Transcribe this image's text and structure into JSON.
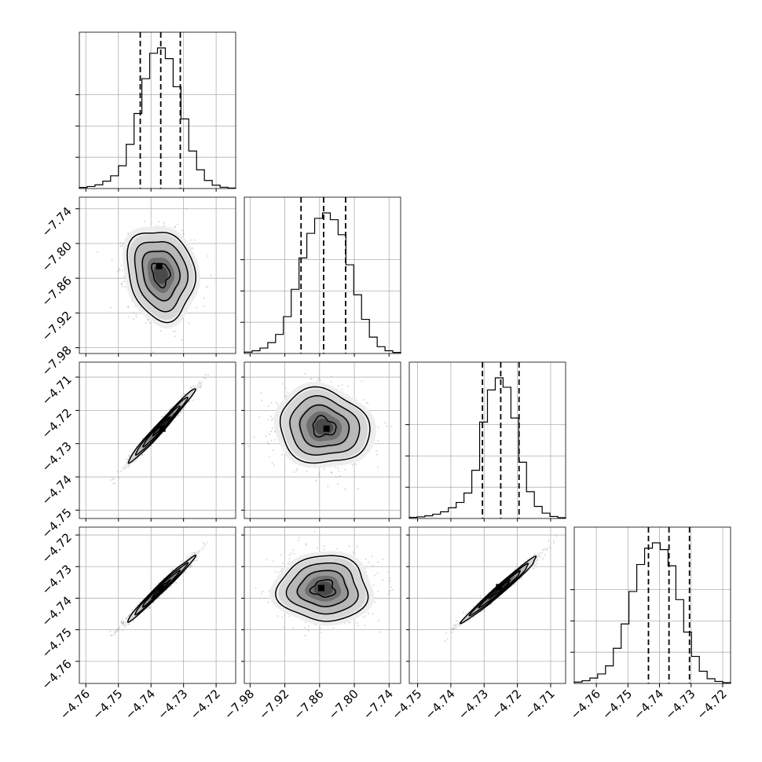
{
  "chart_data": {
    "type": "corner",
    "title": "",
    "colors": {
      "ink": "#000000",
      "grid": "#b0b0b0",
      "points": "#7a7a7a"
    },
    "grid": true,
    "parameters": [
      {
        "range": [
          -4.762,
          -4.714
        ],
        "ticks": [
          -4.76,
          -4.75,
          -4.74,
          -4.73,
          -4.72
        ],
        "tick_labels": [
          "−4.76",
          "−4.75",
          "−4.74",
          "−4.73",
          "−4.72"
        ],
        "quantiles": [
          -4.7433,
          -4.737,
          -4.731
        ],
        "histogram": {
          "edges": [
            -4.762,
            -4.7596,
            -4.7572,
            -4.7548,
            -4.7524,
            -4.75,
            -4.7476,
            -4.7452,
            -4.7428,
            -4.7404,
            -4.738,
            -4.7356,
            -4.7332,
            -4.7308,
            -4.7284,
            -4.726,
            -4.7236,
            -4.7212,
            -4.7188,
            -4.7164,
            -4.714
          ],
          "counts": [
            8,
            15,
            28,
            55,
            95,
            170,
            330,
            560,
            820,
            1010,
            1050,
            970,
            760,
            520,
            280,
            140,
            60,
            25,
            10,
            4
          ]
        }
      },
      {
        "range": [
          -7.99,
          -7.72
        ],
        "ticks": [
          -7.98,
          -7.92,
          -7.86,
          -7.8,
          -7.74
        ],
        "tick_labels": [
          "−7.98",
          "−7.92",
          "−7.86",
          "−7.80",
          "−7.74"
        ],
        "quantiles": [
          -7.892,
          -7.853,
          -7.815
        ],
        "histogram": {
          "edges": [
            -7.99,
            -7.9765,
            -7.963,
            -7.9495,
            -7.936,
            -7.9225,
            -7.909,
            -7.8955,
            -7.882,
            -7.8685,
            -7.855,
            -7.8415,
            -7.828,
            -7.8145,
            -7.801,
            -7.7875,
            -7.774,
            -7.7605,
            -7.747,
            -7.7335,
            -7.72
          ],
          "counts": [
            10,
            20,
            40,
            80,
            140,
            270,
            470,
            700,
            880,
            990,
            1030,
            980,
            870,
            650,
            430,
            250,
            120,
            50,
            20,
            8
          ]
        }
      },
      {
        "range": [
          -4.7525,
          -4.7055
        ],
        "ticks": [
          -4.75,
          -4.74,
          -4.73,
          -4.72,
          -4.71
        ],
        "tick_labels": [
          "−4.75",
          "−4.74",
          "−4.73",
          "−4.72",
          "−4.71"
        ],
        "quantiles": [
          -4.7305,
          -4.725,
          -4.7195
        ],
        "histogram": {
          "edges": [
            -4.7525,
            -4.75015,
            -4.7478,
            -4.74545,
            -4.7431,
            -4.74075,
            -4.7384,
            -4.73605,
            -4.7337,
            -4.73135,
            -4.729,
            -4.72665,
            -4.7243,
            -4.72195,
            -4.7196,
            -4.71725,
            -4.7149,
            -4.71255,
            -4.7102,
            -4.70785,
            -4.7055
          ],
          "counts": [
            8,
            12,
            20,
            32,
            50,
            80,
            120,
            190,
            360,
            720,
            960,
            1050,
            980,
            750,
            420,
            200,
            90,
            40,
            15,
            6
          ]
        }
      },
      {
        "range": [
          -4.767,
          -4.7175
        ],
        "ticks": [
          -4.76,
          -4.75,
          -4.74,
          -4.73,
          -4.72
        ],
        "tick_labels": [
          "−4.76",
          "−4.75",
          "−4.74",
          "−4.73",
          "−4.72"
        ],
        "quantiles": [
          -4.7435,
          -4.737,
          -4.7305
        ],
        "histogram": {
          "edges": [
            -4.767,
            -4.76452,
            -4.76205,
            -4.75958,
            -4.7571,
            -4.75463,
            -4.75215,
            -4.74968,
            -4.7472,
            -4.74472,
            -4.74225,
            -4.73977,
            -4.7373,
            -4.73482,
            -4.73235,
            -4.72988,
            -4.7274,
            -4.72492,
            -4.72245,
            -4.71997,
            -4.7175
          ],
          "counts": [
            10,
            20,
            40,
            70,
            130,
            260,
            440,
            680,
            880,
            1000,
            1040,
            990,
            870,
            620,
            380,
            200,
            90,
            35,
            15,
            6
          ]
        }
      }
    ],
    "pairs": [
      {
        "x_param": 0,
        "y_param": 1,
        "mean": [
          -4.737,
          -7.853
        ],
        "sigma": [
          0.0048,
          0.036
        ],
        "correlation": -0.15,
        "peak": [
          -4.7375,
          -7.839
        ]
      },
      {
        "x_param": 0,
        "y_param": 2,
        "mean": [
          -4.737,
          -4.725
        ],
        "sigma": [
          0.0048,
          0.0052
        ],
        "correlation": 0.985,
        "peak": [
          -4.7365,
          -4.7255
        ]
      },
      {
        "x_param": 1,
        "y_param": 2,
        "mean": [
          -7.853,
          -4.725
        ],
        "sigma": [
          0.036,
          0.0052
        ],
        "correlation": -0.1,
        "peak": [
          -7.848,
          -4.7255
        ]
      },
      {
        "x_param": 0,
        "y_param": 3,
        "mean": [
          -4.737,
          -4.737
        ],
        "sigma": [
          0.0048,
          0.0048
        ],
        "correlation": 0.985,
        "peak": [
          -4.737,
          -4.7368
        ]
      },
      {
        "x_param": 1,
        "y_param": 3,
        "mean": [
          -7.853,
          -4.737
        ],
        "sigma": [
          0.036,
          0.0048
        ],
        "correlation": 0.0,
        "peak": [
          -7.857,
          -4.7368
        ]
      },
      {
        "x_param": 2,
        "y_param": 3,
        "mean": [
          -4.725,
          -4.737
        ],
        "sigma": [
          0.0052,
          0.0048
        ],
        "correlation": 0.985,
        "peak": [
          -4.7255,
          -4.7365
        ]
      }
    ]
  }
}
